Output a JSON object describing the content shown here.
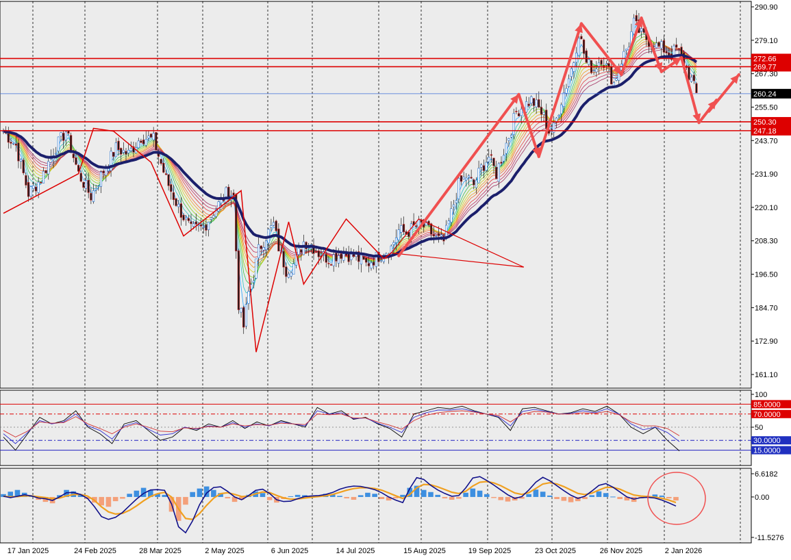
{
  "colors": {
    "background": "#ececec",
    "grid": "#000000",
    "bull": "#1e6fd0",
    "bear": "#d01e1e",
    "level_red": "#dd0000",
    "price_blue": "#3d6bd8",
    "ema_main": "#1b1f6b",
    "arrow": "#f05050",
    "hist_pos": "#3d8fe0",
    "hist_neg": "#f4a07a",
    "rsi_black": "#000000",
    "rsi_blue": "#3030d0",
    "rsi_red": "#d03030",
    "macd_main": "#10108a",
    "macd_signal": "#f0a020"
  },
  "chart_data": [
    {
      "type": "candlestick",
      "panel": "price",
      "ylim": [
        161.1,
        290.9
      ],
      "y_ticks": [
        "290.90",
        "279.10",
        "267.30",
        "255.50",
        "243.70",
        "231.90",
        "220.10",
        "208.30",
        "196.50",
        "184.70",
        "172.90",
        "161.10"
      ],
      "x_labels": [
        "17 Jan 2025",
        "24 Feb 2025",
        "28 Mar 2025",
        "2 May 2025",
        "6 Jun 2025",
        "14 Jul 2025",
        "15 Aug 2025",
        "19 Sep 2025",
        "23 Oct 2025",
        "26 Nov 2025",
        "2 Jan 2026"
      ],
      "close_path": [
        [
          0,
          247
        ],
        [
          5,
          242
        ],
        [
          10,
          225
        ],
        [
          15,
          230
        ],
        [
          20,
          240
        ],
        [
          25,
          247
        ],
        [
          30,
          232
        ],
        [
          35,
          224
        ],
        [
          40,
          233
        ],
        [
          45,
          241
        ],
        [
          50,
          239
        ],
        [
          55,
          245
        ],
        [
          60,
          244
        ],
        [
          65,
          230
        ],
        [
          70,
          220
        ],
        [
          75,
          212
        ],
        [
          80,
          213
        ],
        [
          85,
          220
        ],
        [
          90,
          226
        ],
        [
          92,
          224
        ],
        [
          94,
          186
        ],
        [
          96,
          178
        ],
        [
          98,
          190
        ],
        [
          100,
          196
        ],
        [
          102,
          205
        ],
        [
          105,
          210
        ],
        [
          108,
          214
        ],
        [
          110,
          206
        ],
        [
          113,
          198
        ],
        [
          116,
          200
        ],
        [
          120,
          208
        ],
        [
          123,
          207
        ],
        [
          126,
          204
        ],
        [
          130,
          202
        ],
        [
          135,
          204
        ],
        [
          140,
          203
        ],
        [
          145,
          200
        ],
        [
          150,
          203
        ],
        [
          155,
          206
        ],
        [
          158,
          212
        ],
        [
          161,
          211
        ],
        [
          164,
          213
        ],
        [
          167,
          214
        ],
        [
          170,
          212
        ],
        [
          173,
          209
        ],
        [
          176,
          208
        ],
        [
          179,
          218
        ],
        [
          182,
          228
        ],
        [
          185,
          231
        ],
        [
          188,
          228
        ],
        [
          191,
          234
        ],
        [
          194,
          238
        ],
        [
          197,
          232
        ],
        [
          200,
          240
        ],
        [
          203,
          248
        ],
        [
          205,
          254
        ],
        [
          208,
          256
        ],
        [
          211,
          258
        ],
        [
          214,
          255
        ],
        [
          216,
          252
        ],
        [
          218,
          247
        ],
        [
          220,
          248
        ],
        [
          223,
          258
        ],
        [
          226,
          266
        ],
        [
          228,
          272
        ],
        [
          230,
          282
        ],
        [
          233,
          271
        ],
        [
          236,
          269
        ],
        [
          239,
          273
        ],
        [
          242,
          268
        ],
        [
          244,
          264
        ],
        [
          247,
          272
        ],
        [
          250,
          278
        ],
        [
          252,
          285
        ],
        [
          255,
          281
        ],
        [
          258,
          279
        ],
        [
          261,
          277
        ],
        [
          264,
          276
        ],
        [
          267,
          274
        ],
        [
          269,
          276
        ],
        [
          271,
          273
        ],
        [
          273,
          269
        ],
        [
          275,
          265
        ],
        [
          277,
          260
        ]
      ],
      "levels": [
        {
          "value": 272.66,
          "label": "272.66",
          "style": "red"
        },
        {
          "value": 269.77,
          "label": "269.77",
          "style": "red"
        },
        {
          "value": 260.24,
          "label": "260.24",
          "style": "current"
        },
        {
          "value": 250.3,
          "label": "250.30",
          "style": "red"
        },
        {
          "value": 247.18,
          "label": "247.18",
          "style": "red"
        }
      ],
      "zigzag": [
        [
          0,
          218
        ],
        [
          30,
          232
        ],
        [
          36,
          248
        ],
        [
          44,
          247
        ],
        [
          59,
          236
        ],
        [
          72,
          210
        ],
        [
          95,
          226
        ],
        [
          101,
          169
        ],
        [
          114,
          215
        ],
        [
          120,
          193
        ],
        [
          137,
          216
        ],
        [
          152,
          202
        ],
        [
          155,
          204
        ]
      ],
      "forecast_arrows": [
        [
          [
            158,
            203
          ],
          [
            206,
            260
          ]
        ],
        [
          [
            206,
            260
          ],
          [
            214,
            238
          ]
        ],
        [
          [
            214,
            238
          ],
          [
            231,
            285
          ]
        ],
        [
          [
            231,
            285
          ],
          [
            247,
            267
          ]
        ],
        [
          [
            247,
            267
          ],
          [
            255,
            287
          ]
        ],
        [
          [
            255,
            287
          ],
          [
            263,
            268
          ]
        ],
        [
          [
            263,
            268
          ],
          [
            271,
            273
          ]
        ],
        [
          [
            271,
            273
          ],
          [
            278,
            250
          ]
        ],
        [
          [
            278,
            250
          ],
          [
            285,
            258
          ]
        ],
        [
          [
            282,
            254
          ],
          [
            294,
            267
          ]
        ]
      ]
    },
    {
      "type": "line",
      "panel": "stochastic",
      "ylim": [
        0,
        100
      ],
      "y_ticks": [
        "100",
        "50"
      ],
      "levels": [
        {
          "value": 85,
          "label": "85.0000",
          "style": "red-solid"
        },
        {
          "value": 70,
          "label": "70.0000",
          "style": "red-dashdot"
        },
        {
          "value": 30,
          "label": "30.0000",
          "style": "blue-dashdot"
        },
        {
          "value": 15,
          "label": "15.0000",
          "style": "blue-solid"
        }
      ],
      "series": [
        {
          "values": [
            35,
            15,
            40,
            65,
            55,
            60,
            75,
            50,
            40,
            25,
            55,
            60,
            45,
            30,
            35,
            50,
            45,
            55,
            50,
            60,
            48,
            58,
            52,
            60,
            55,
            50,
            80,
            70,
            75,
            62,
            65,
            55,
            48,
            35,
            70,
            75,
            80,
            78,
            82,
            75,
            70,
            65,
            45,
            78,
            80,
            75,
            70,
            72,
            78,
            74,
            82,
            70,
            50,
            40,
            50,
            30,
            14
          ],
          "color": "black"
        },
        {
          "values": [
            40,
            25,
            42,
            60,
            55,
            58,
            70,
            52,
            45,
            32,
            52,
            57,
            47,
            38,
            40,
            50,
            47,
            52,
            50,
            57,
            50,
            55,
            52,
            58,
            55,
            52,
            75,
            70,
            72,
            63,
            64,
            56,
            50,
            42,
            65,
            72,
            76,
            76,
            78,
            74,
            70,
            66,
            52,
            74,
            77,
            74,
            70,
            71,
            75,
            72,
            78,
            70,
            55,
            46,
            50,
            42,
            28
          ],
          "color": "blue"
        },
        {
          "values": [
            45,
            35,
            44,
            58,
            56,
            57,
            66,
            55,
            48,
            40,
            50,
            55,
            50,
            44,
            43,
            49,
            48,
            51,
            50,
            55,
            52,
            54,
            53,
            56,
            55,
            54,
            70,
            69,
            70,
            64,
            64,
            58,
            53,
            47,
            60,
            68,
            72,
            74,
            75,
            73,
            70,
            68,
            58,
            70,
            74,
            73,
            70,
            70,
            72,
            71,
            74,
            69,
            58,
            52,
            52,
            48,
            37
          ],
          "color": "red"
        }
      ]
    },
    {
      "type": "bar",
      "panel": "macd",
      "ylim": [
        -11.5276,
        6.6182
      ],
      "y_ticks": [
        "6.6182",
        "0.00",
        "-11.5276"
      ],
      "histogram": [
        0.8,
        1.5,
        2.0,
        1.2,
        0.3,
        -0.8,
        -1.4,
        -1.8,
        0.5,
        2.0,
        1.6,
        0.8,
        -0.6,
        -1.6,
        -2.4,
        -2.8,
        -1.2,
        -0.5,
        0.9,
        1.8,
        2.6,
        1.9,
        0.9,
        0.6,
        -4.2,
        -6.8,
        -2.2,
        1.4,
        2.4,
        3.0,
        2.0,
        1.1,
        -0.4,
        -1.4,
        -0.8,
        0.6,
        1.6,
        1.1,
        -0.9,
        -1.6,
        -0.6,
        0.2,
        0.6,
        0.5,
        0.2,
        0.4,
        0.9,
        0.7,
        0.3,
        -0.4,
        -0.8,
        0.5,
        1.2,
        0.9,
        -0.6,
        -1.0,
        -0.4,
        0.6,
        2.6,
        3.2,
        2.0,
        1.4,
        0.6,
        -0.4,
        -0.8,
        -0.5,
        1.2,
        2.4,
        1.8,
        0.8,
        -0.3,
        -0.9,
        -1.3,
        -1.0,
        -0.5,
        0.8,
        2.1,
        1.5,
        0.4,
        -0.6,
        -1.1,
        -1.5,
        -1.2,
        -0.6,
        0.5,
        1.6,
        1.1,
        0.1,
        -0.6,
        -1.0,
        -1.4,
        -0.4,
        0.3,
        0.7,
        0.4,
        -0.4,
        -1.0
      ],
      "macd_line": [
        0.2,
        -0.2,
        0.2,
        0.6,
        0.3,
        -0.3,
        -0.5,
        -1.0,
        0.0,
        1.2,
        1.3,
        0.7,
        -0.4,
        -2.8,
        -5.6,
        -6.4,
        -5.8,
        -4.4,
        -2.5,
        -0.6,
        1.0,
        2.0,
        2.1,
        1.9,
        -2.0,
        -8.5,
        -10.2,
        -6.8,
        -2.2,
        1.1,
        2.7,
        2.9,
        1.6,
        0.0,
        -0.8,
        0.4,
        1.9,
        2.2,
        1.0,
        -0.8,
        -1.3,
        -1.2,
        -0.5,
        0.1,
        0.3,
        0.4,
        0.7,
        1.3,
        2.2,
        2.8,
        3.1,
        3.0,
        2.6,
        2.1,
        1.2,
        0.0,
        -0.9,
        -1.6,
        2.4,
        5.5,
        5.0,
        3.3,
        2.0,
        1.0,
        0.2,
        0.4,
        2.6,
        5.4,
        5.8,
        4.7,
        3.4,
        2.0,
        0.6,
        -0.4,
        0.1,
        2.0,
        4.2,
        5.6,
        4.6,
        3.2,
        1.8,
        0.5,
        -0.4,
        0.2,
        1.7,
        3.3,
        3.8,
        2.8,
        1.4,
        0.0,
        -0.6,
        -0.2,
        -0.1,
        -0.3,
        -0.9,
        -1.7,
        -2.6
      ]
    }
  ]
}
